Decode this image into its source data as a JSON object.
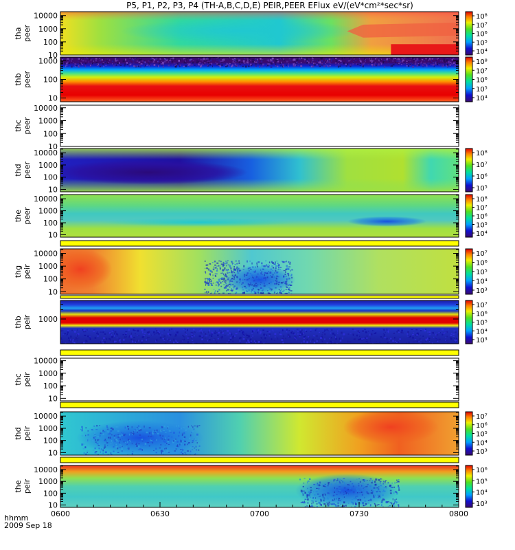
{
  "title": "P5, P1, P2, P3, P4 (TH-A,B,C,D,E) PEIR,PEER EFlux eV/(eV*cm²*sec*sr)",
  "time_axis": {
    "label_line1": "hhmm",
    "label_line2": "2009 Sep 18",
    "ticks": [
      "0600",
      "0630",
      "0700",
      "0730",
      "0800"
    ]
  },
  "chart_data": {
    "type": "heatmap",
    "x_range": [
      "06:00",
      "08:00"
    ],
    "panels": [
      {
        "id": "tha-peer",
        "label1": "tha",
        "label2": "peer",
        "has_data": true,
        "scale": "log",
        "y_ticks": [
          "10",
          "100",
          "1000",
          "10000"
        ],
        "cbar_ticks": [
          "10⁴",
          "10⁵",
          "10⁶",
          "10⁷",
          "10⁸"
        ]
      },
      {
        "id": "thb-peer",
        "label1": "thb",
        "label2": "peer",
        "has_data": true,
        "scale": "log",
        "y_ticks": [
          "10",
          "100",
          "1000"
        ],
        "cbar_ticks": [
          "10⁴",
          "10⁵",
          "10⁶",
          "10⁷",
          "10⁸"
        ]
      },
      {
        "id": "thc-peer",
        "label1": "thc",
        "label2": "peer",
        "has_data": false,
        "scale": "log",
        "y_ticks": [
          "10",
          "100",
          "1000",
          "10000"
        ],
        "cbar_ticks": []
      },
      {
        "id": "thd-peer",
        "label1": "thd",
        "label2": "peer",
        "has_data": true,
        "scale": "log",
        "y_ticks": [
          "10",
          "100",
          "1000",
          "10000"
        ],
        "cbar_ticks": [
          "10⁵",
          "10⁶",
          "10⁷",
          "10⁸"
        ]
      },
      {
        "id": "the-peer",
        "label1": "the",
        "label2": "peer",
        "has_data": true,
        "scale": "log",
        "y_ticks": [
          "10",
          "100",
          "1000",
          "10000"
        ],
        "cbar_ticks": [
          "10⁴",
          "10⁵",
          "10⁶",
          "10⁷",
          "10⁸"
        ]
      },
      {
        "id": "thg-peir",
        "label1": "thg",
        "label2": "peir",
        "has_data": true,
        "scale": "log",
        "y_ticks": [
          "10",
          "100",
          "1000",
          "10000"
        ],
        "cbar_ticks": [
          "10³",
          "10⁴",
          "10⁵",
          "10⁶",
          "10⁷"
        ]
      },
      {
        "id": "thb-peir",
        "label1": "thb",
        "label2": "peir",
        "has_data": true,
        "scale": "log",
        "y_ticks": [
          "1000"
        ],
        "cbar_ticks": [
          "10³",
          "10⁴",
          "10⁵",
          "10⁶",
          "10⁷"
        ]
      },
      {
        "id": "thc-peir",
        "label1": "thc",
        "label2": "peir",
        "has_data": false,
        "scale": "log",
        "y_ticks": [
          "10",
          "100",
          "1000",
          "10000"
        ],
        "cbar_ticks": []
      },
      {
        "id": "thd-peir",
        "label1": "thd",
        "label2": "peir",
        "has_data": true,
        "scale": "log",
        "y_ticks": [
          "10",
          "100",
          "1000",
          "10000"
        ],
        "cbar_ticks": [
          "10³",
          "10⁴",
          "10⁵",
          "10⁶",
          "10⁷"
        ]
      },
      {
        "id": "the-peir",
        "label1": "the",
        "label2": "peir",
        "has_data": true,
        "scale": "log",
        "y_ticks": [
          "10",
          "100",
          "1000",
          "10000"
        ],
        "cbar_ticks": [
          "10³",
          "10⁴",
          "10⁵",
          "10⁶"
        ]
      }
    ]
  }
}
